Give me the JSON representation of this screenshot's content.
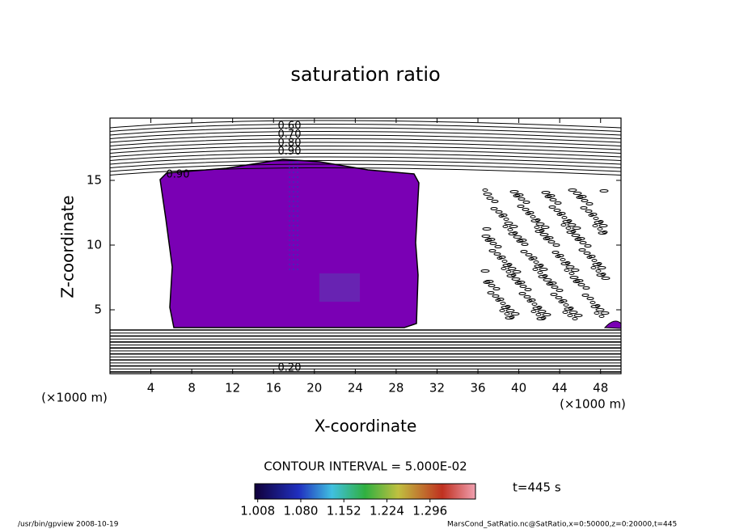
{
  "chart_data": {
    "type": "contour",
    "title": "saturation ratio",
    "x_label": "X-coordinate",
    "y_label": "Z-coordinate",
    "axis_unit_label": "(×1000 m)",
    "xlim": [
      0,
      50
    ],
    "xticks": [
      4,
      8,
      12,
      16,
      20,
      24,
      28,
      32,
      36,
      40,
      44,
      48
    ],
    "ylim": [
      0,
      20
    ],
    "yticks": [
      5,
      10,
      15
    ],
    "fill_color": "#7a00b4",
    "contour_labels_top": [
      {
        "value": 0.6,
        "label": "0.60"
      },
      {
        "value": 0.7,
        "label": "0.70"
      },
      {
        "value": 0.8,
        "label": "0.80"
      },
      {
        "value": 0.9,
        "label": "0.90"
      }
    ],
    "contour_label_left": {
      "value": 0.9,
      "label": "0.90"
    },
    "contour_label_bottom": {
      "value": 0.2,
      "label": "0.20"
    },
    "contour_interval": "CONTOUR INTERVAL = 5.000E-02",
    "colorbar_lim": [
      1.003,
      1.372
    ],
    "colorbar_ticks": [
      {
        "value": 1.008,
        "label": "1.008"
      },
      {
        "value": 1.08,
        "label": "1.080"
      },
      {
        "value": 1.152,
        "label": "1.152"
      },
      {
        "value": 1.224,
        "label": "1.224"
      },
      {
        "value": 1.296,
        "label": "1.296"
      }
    ],
    "time_label": "t=445 s",
    "footer_left": "/usr/bin/gpview   2008-10-19",
    "footer_right": "MarsCond_SatRatio.nc@SatRatio,x=0:50000,z=0:20000,t=445"
  }
}
